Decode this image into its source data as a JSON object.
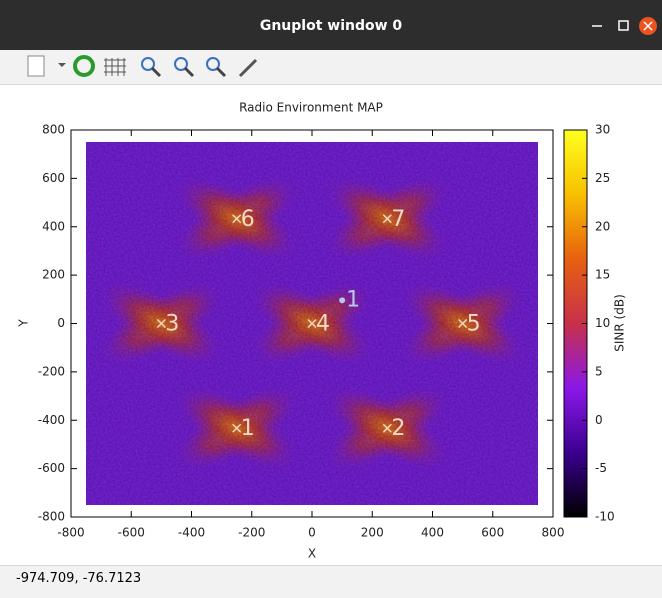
{
  "window": {
    "title": "Gnuplot window 0",
    "status": "-974.709, -76.7123"
  },
  "chart_data": {
    "type": "scatter",
    "title": "Radio Environment MAP",
    "xlabel": "X",
    "ylabel": "Y",
    "xlim": [
      -800,
      800
    ],
    "ylim": [
      -800,
      800
    ],
    "xticks": [
      -800,
      -600,
      -400,
      -200,
      0,
      200,
      400,
      600,
      800
    ],
    "yticks": [
      -800,
      -600,
      -400,
      -200,
      0,
      200,
      400,
      600,
      800
    ],
    "zlabel": "SINR (dB)",
    "zlim": [
      -10,
      30
    ],
    "zticks": [
      -10,
      -5,
      0,
      5,
      10,
      15,
      20,
      25,
      30
    ],
    "palette": [
      "#000000",
      "#3a0090",
      "#8a18e8",
      "#c8304a",
      "#e86010",
      "#f8c000",
      "#ffff20"
    ],
    "field_color": "#7c22e6",
    "series": [
      {
        "marker": "x",
        "color": "#f4d8c8",
        "labels": [
          "1",
          "2",
          "3",
          "4",
          "5",
          "6",
          "7"
        ],
        "x": [
          -250,
          250,
          -500,
          0,
          500,
          -250,
          250
        ],
        "values": [
          -433,
          -433,
          0,
          0,
          0,
          433,
          433
        ]
      },
      {
        "marker": "dot",
        "color": "#b8c8e8",
        "labels": [
          "1"
        ],
        "x": [
          100
        ],
        "values": [
          100
        ]
      }
    ]
  }
}
